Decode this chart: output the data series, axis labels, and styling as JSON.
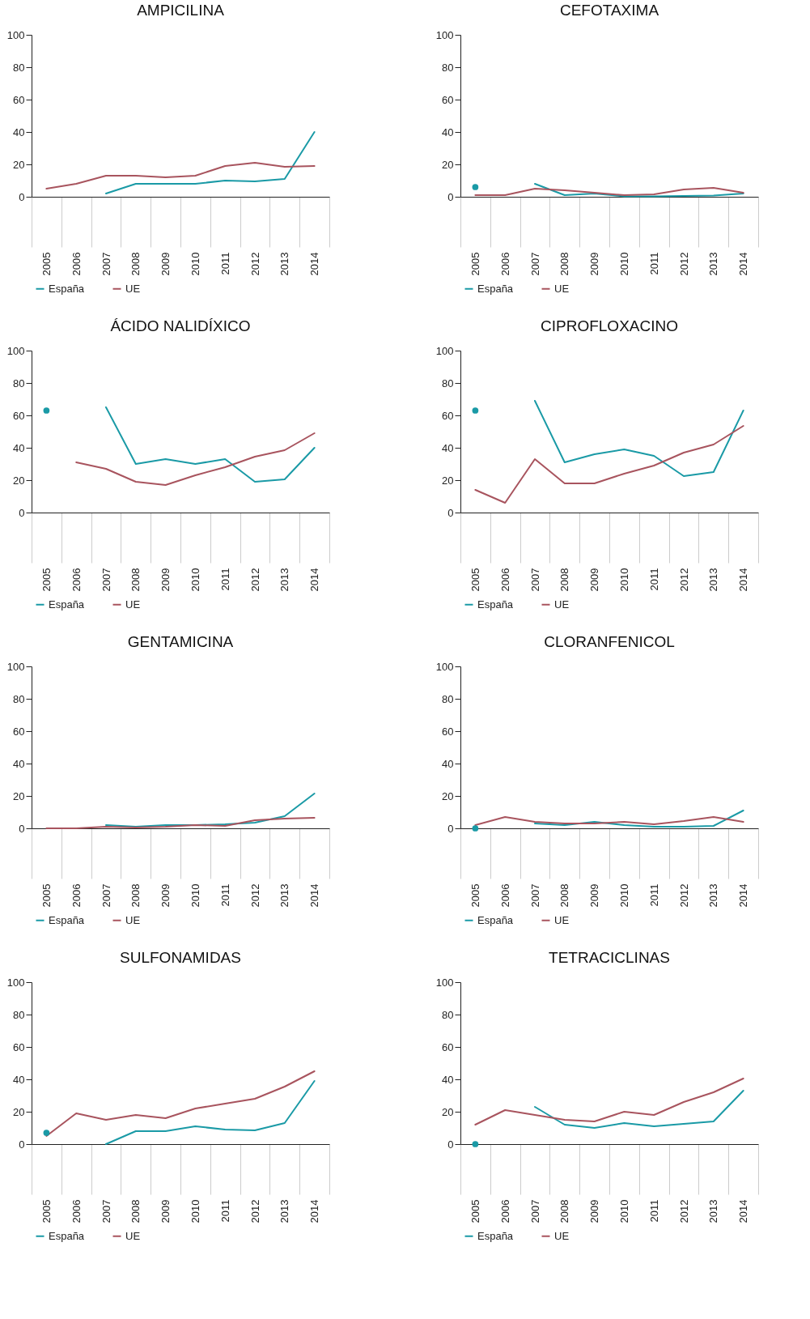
{
  "chart_data": [
    {
      "type": "line",
      "title": "AMPICILINA",
      "categories": [
        "2005",
        "2006",
        "2007",
        "2008",
        "2009",
        "2010",
        "2011",
        "2012",
        "2013",
        "2014"
      ],
      "ylim": [
        0,
        100
      ],
      "yticks": [
        0,
        20,
        40,
        60,
        80,
        100
      ],
      "legend": "bottom left",
      "series": [
        {
          "name": "España",
          "color": "#1a9aa6",
          "values": [
            null,
            null,
            2,
            8,
            8,
            8,
            10,
            9.5,
            11,
            40
          ]
        },
        {
          "name": "UE",
          "color": "#a8545e",
          "values": [
            5,
            8,
            13,
            13,
            12,
            13,
            19,
            21,
            18.5,
            19
          ]
        }
      ]
    },
    {
      "type": "line",
      "title": "CEFOTAXIMA",
      "categories": [
        "2005",
        "2006",
        "2007",
        "2008",
        "2009",
        "2010",
        "2011",
        "2012",
        "2013",
        "2014"
      ],
      "ylim": [
        0,
        100
      ],
      "yticks": [
        0,
        20,
        40,
        60,
        80,
        100
      ],
      "legend": "bottom left",
      "series": [
        {
          "name": "España",
          "color": "#1a9aa6",
          "values": [
            6,
            null,
            8,
            1,
            2,
            0.3,
            0.3,
            0.5,
            0.7,
            2
          ]
        },
        {
          "name": "UE",
          "color": "#a8545e",
          "values": [
            1,
            1,
            5,
            4,
            2.5,
            1,
            1.5,
            4.5,
            5.5,
            2.5
          ]
        }
      ]
    },
    {
      "type": "line",
      "title": "ÁCIDO NALIDÍXICO",
      "categories": [
        "2005",
        "2006",
        "2007",
        "2008",
        "2009",
        "2010",
        "2011",
        "2012",
        "2013",
        "2014"
      ],
      "ylim": [
        0,
        100
      ],
      "yticks": [
        0,
        20,
        40,
        60,
        80,
        100
      ],
      "legend": "bottom left",
      "series": [
        {
          "name": "España",
          "color": "#1a9aa6",
          "values": [
            63,
            null,
            65,
            30,
            33,
            30,
            33,
            19,
            20.5,
            40
          ]
        },
        {
          "name": "UE",
          "color": "#a8545e",
          "values": [
            null,
            31,
            27,
            19,
            17,
            23,
            28,
            34.5,
            38.5,
            49
          ]
        }
      ]
    },
    {
      "type": "line",
      "title": "CIPROFLOXACINO",
      "categories": [
        "2005",
        "2006",
        "2007",
        "2008",
        "2009",
        "2010",
        "2011",
        "2012",
        "2013",
        "2014"
      ],
      "ylim": [
        0,
        100
      ],
      "yticks": [
        0,
        20,
        40,
        60,
        80,
        100
      ],
      "legend": "bottom left",
      "series": [
        {
          "name": "España",
          "color": "#1a9aa6",
          "values": [
            63,
            null,
            69,
            31,
            36,
            39,
            35,
            22.5,
            25,
            63
          ]
        },
        {
          "name": "UE",
          "color": "#a8545e",
          "values": [
            14,
            6,
            33,
            18,
            18,
            24,
            29,
            37,
            42,
            53.5
          ]
        }
      ]
    },
    {
      "type": "line",
      "title": "GENTAMICINA",
      "categories": [
        "2005",
        "2006",
        "2007",
        "2008",
        "2009",
        "2010",
        "2011",
        "2012",
        "2013",
        "2014"
      ],
      "ylim": [
        0,
        100
      ],
      "yticks": [
        0,
        20,
        40,
        60,
        80,
        100
      ],
      "legend": "bottom left",
      "series": [
        {
          "name": "España",
          "color": "#1a9aa6",
          "values": [
            null,
            null,
            2,
            1,
            2,
            2,
            2.5,
            3.5,
            7.5,
            21.5
          ]
        },
        {
          "name": "UE",
          "color": "#a8545e",
          "values": [
            0,
            0,
            1,
            0.5,
            1,
            2,
            1.5,
            5,
            6,
            6.5
          ]
        }
      ]
    },
    {
      "type": "line",
      "title": "CLORANFENICOL",
      "categories": [
        "2005",
        "2006",
        "2007",
        "2008",
        "2009",
        "2010",
        "2011",
        "2012",
        "2013",
        "2014"
      ],
      "ylim": [
        0,
        100
      ],
      "yticks": [
        0,
        20,
        40,
        60,
        80,
        100
      ],
      "legend": "bottom left",
      "series": [
        {
          "name": "España",
          "color": "#1a9aa6",
          "values": [
            0,
            null,
            3,
            2,
            4,
            2,
            1,
            1,
            1.5,
            11
          ]
        },
        {
          "name": "UE",
          "color": "#a8545e",
          "values": [
            2,
            7,
            4,
            3,
            3,
            4,
            2.5,
            4.5,
            7,
            4
          ]
        }
      ]
    },
    {
      "type": "line",
      "title": "SULFONAMIDAS",
      "categories": [
        "2005",
        "2006",
        "2007",
        "2008",
        "2009",
        "2010",
        "2011",
        "2012",
        "2013",
        "2014"
      ],
      "ylim": [
        0,
        100
      ],
      "yticks": [
        0,
        20,
        40,
        60,
        80,
        100
      ],
      "legend": "bottom left",
      "series": [
        {
          "name": "España",
          "color": "#1a9aa6",
          "values": [
            7,
            null,
            0,
            8,
            8,
            11,
            9,
            8.5,
            13,
            39
          ]
        },
        {
          "name": "UE",
          "color": "#a8545e",
          "values": [
            5,
            19,
            15,
            18,
            16,
            22,
            25,
            28,
            35.5,
            45
          ]
        }
      ]
    },
    {
      "type": "line",
      "title": "TETRACICLINAS",
      "categories": [
        "2005",
        "2006",
        "2007",
        "2008",
        "2009",
        "2010",
        "2011",
        "2012",
        "2013",
        "2014"
      ],
      "ylim": [
        0,
        100
      ],
      "yticks": [
        0,
        20,
        40,
        60,
        80,
        100
      ],
      "legend": "bottom left",
      "series": [
        {
          "name": "España",
          "color": "#1a9aa6",
          "values": [
            0,
            null,
            23,
            12,
            10,
            13,
            11,
            12.5,
            14,
            33
          ]
        },
        {
          "name": "UE",
          "color": "#a8545e",
          "values": [
            12,
            21,
            18,
            15,
            14,
            20,
            18,
            26,
            32,
            40.5
          ]
        }
      ]
    }
  ]
}
